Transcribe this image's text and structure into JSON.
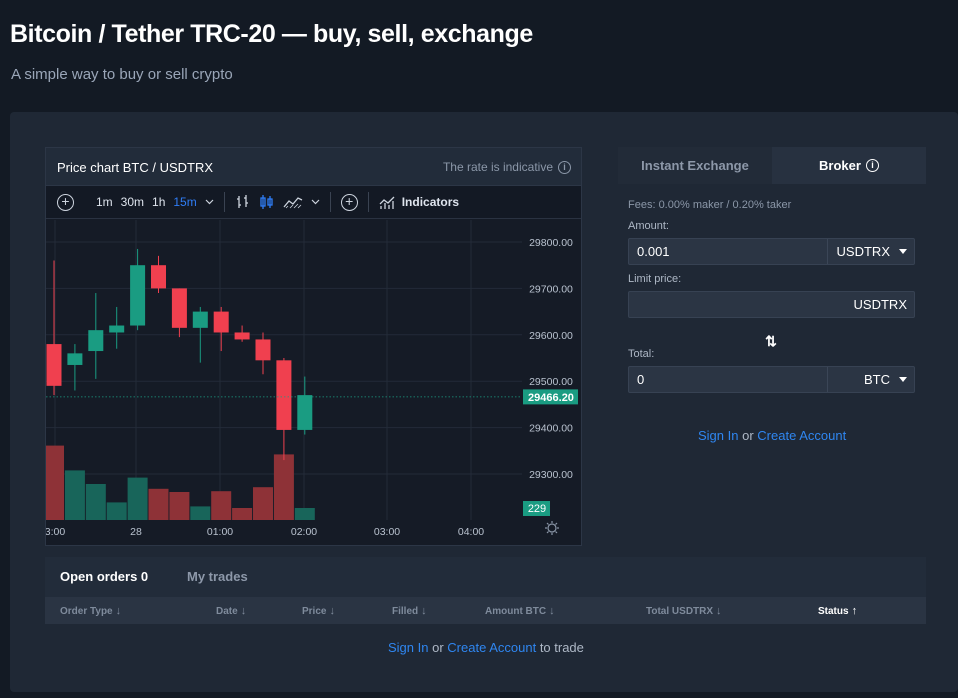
{
  "page": {
    "title": "Bitcoin / Tether TRC-20 — buy, sell, exchange",
    "subtitle": "A simple way to buy or sell crypto"
  },
  "chart_card": {
    "title": "Price chart BTC / USDTRX",
    "rate_note": "The rate is indicative"
  },
  "toolbar": {
    "intervals": [
      "1m",
      "30m",
      "1h",
      "15m"
    ],
    "active_interval": "15m",
    "indicators_label": "Indicators"
  },
  "chart_data": {
    "type": "candlestick",
    "price_axis_labels": [
      "29800.00",
      "29700.00",
      "29600.00",
      "29500.00",
      "29400.00",
      "29300.00"
    ],
    "time_axis_labels": [
      "3:00",
      "28",
      "01:00",
      "02:00",
      "03:00",
      "04:00"
    ],
    "current_price_label": "29466.20",
    "volume_label": "229",
    "ylim": [
      29240,
      29830
    ],
    "candles": [
      {
        "o": 29580,
        "h": 29760,
        "l": 29470,
        "c": 29490,
        "dir": "down"
      },
      {
        "o": 29535,
        "h": 29580,
        "l": 29480,
        "c": 29560,
        "dir": "up"
      },
      {
        "o": 29565,
        "h": 29690,
        "l": 29505,
        "c": 29610,
        "dir": "up"
      },
      {
        "o": 29605,
        "h": 29660,
        "l": 29570,
        "c": 29620,
        "dir": "up"
      },
      {
        "o": 29620,
        "h": 29785,
        "l": 29610,
        "c": 29750,
        "dir": "up"
      },
      {
        "o": 29750,
        "h": 29770,
        "l": 29690,
        "c": 29700,
        "dir": "down"
      },
      {
        "o": 29700,
        "h": 29700,
        "l": 29595,
        "c": 29615,
        "dir": "down"
      },
      {
        "o": 29615,
        "h": 29660,
        "l": 29540,
        "c": 29650,
        "dir": "up"
      },
      {
        "o": 29650,
        "h": 29660,
        "l": 29565,
        "c": 29605,
        "dir": "down"
      },
      {
        "o": 29605,
        "h": 29620,
        "l": 29585,
        "c": 29590,
        "dir": "down"
      },
      {
        "o": 29590,
        "h": 29605,
        "l": 29515,
        "c": 29545,
        "dir": "down"
      },
      {
        "o": 29545,
        "h": 29550,
        "l": 29330,
        "c": 29395,
        "dir": "down"
      },
      {
        "o": 29395,
        "h": 29510,
        "l": 29385,
        "c": 29470,
        "dir": "up"
      }
    ],
    "volume": [
      {
        "v": 0.93,
        "dir": "down"
      },
      {
        "v": 0.62,
        "dir": "up"
      },
      {
        "v": 0.45,
        "dir": "up"
      },
      {
        "v": 0.22,
        "dir": "up"
      },
      {
        "v": 0.53,
        "dir": "up"
      },
      {
        "v": 0.39,
        "dir": "down"
      },
      {
        "v": 0.35,
        "dir": "down"
      },
      {
        "v": 0.17,
        "dir": "up"
      },
      {
        "v": 0.36,
        "dir": "down"
      },
      {
        "v": 0.15,
        "dir": "down"
      },
      {
        "v": 0.41,
        "dir": "down"
      },
      {
        "v": 0.82,
        "dir": "down"
      },
      {
        "v": 0.15,
        "dir": "up"
      }
    ],
    "colors": {
      "up": "#1a9c82",
      "down": "#f0404f",
      "volume_up": "#18655a",
      "volume_down": "#8e3237"
    }
  },
  "exchange": {
    "tabs": [
      "Instant Exchange",
      "Broker"
    ],
    "active_tab": "Broker",
    "fees": "Fees: 0.00% maker / 0.20% taker",
    "amount_label": "Amount:",
    "amount_value": "0.001",
    "amount_currency": "USDTRX",
    "limit_label": "Limit price:",
    "limit_value": "",
    "limit_currency": "USDTRX",
    "total_label": "Total:",
    "total_value": "0",
    "total_currency": "BTC",
    "sign_in": "Sign In",
    "or": "or",
    "create_account": "Create Account"
  },
  "orders": {
    "tabs": [
      "Open orders 0",
      "My trades"
    ],
    "columns": [
      "Order Type",
      "Date",
      "Price",
      "Filled",
      "Amount BTC",
      "Total USDTRX",
      "Status"
    ],
    "sign_in": "Sign In",
    "or": "or",
    "create_account": "Create Account",
    "suffix": "to trade"
  },
  "colors": {
    "accent": "#2f86f0",
    "background": "#131a24",
    "panel": "#1f2835"
  }
}
